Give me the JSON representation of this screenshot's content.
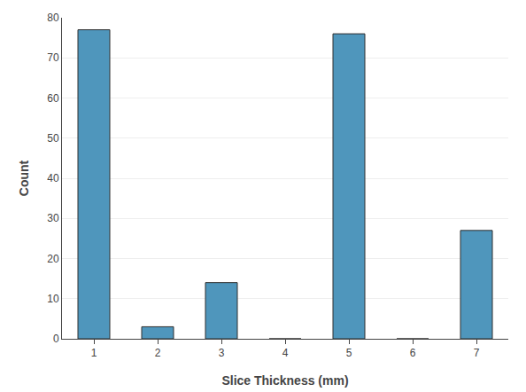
{
  "chart_data": {
    "type": "bar",
    "x": [
      1,
      2,
      3,
      4,
      5,
      6,
      7
    ],
    "values": [
      77,
      3,
      14,
      0,
      76,
      0,
      27
    ],
    "color": "#4f96bc",
    "xlabel": "Slice Thickness (mm)",
    "ylabel": "Count",
    "xlim": [
      0.5,
      7.5
    ],
    "ylim": [
      0,
      80
    ],
    "xticks": [
      1,
      2,
      3,
      4,
      5,
      6,
      7
    ],
    "yticks": [
      0,
      10,
      20,
      30,
      40,
      50,
      60,
      70,
      80
    ],
    "grid": true
  }
}
